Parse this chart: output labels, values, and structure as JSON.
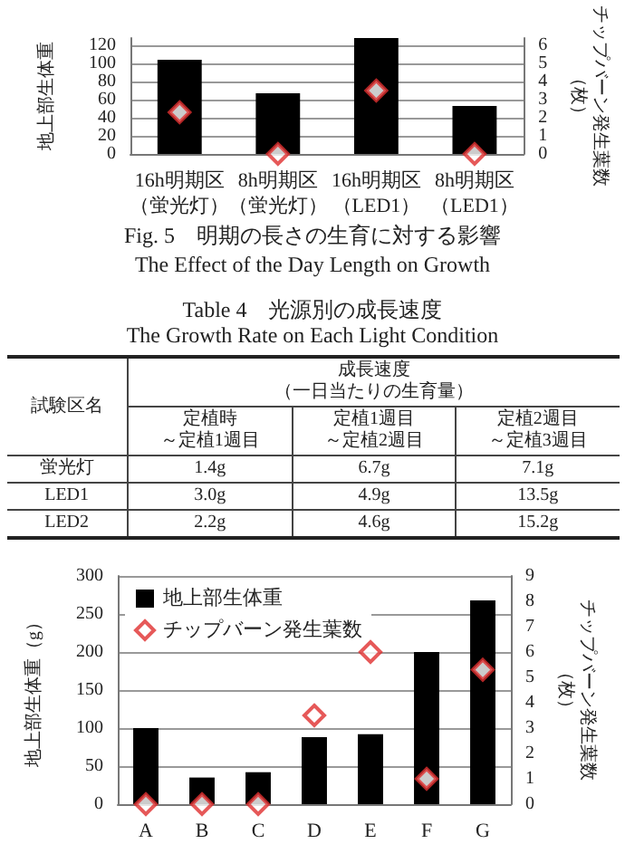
{
  "chart_data": [
    {
      "type": "bar",
      "ylabel": "地上部生体重",
      "y2label": "チップバーン発生葉数（枚）",
      "categories": [
        "16h明期区（蛍光灯）",
        "8h明期区（蛍光灯）",
        "16h明期区（LED1）",
        "8h明期区（LED1）"
      ],
      "series": [
        {
          "type": "bar",
          "color": "#000000",
          "values": [
            104,
            67,
            128,
            53
          ]
        },
        {
          "type": "scatter",
          "axis": "y2",
          "color": "#e0302f",
          "values": [
            2.3,
            0,
            3.5,
            0
          ]
        }
      ],
      "ylim": [
        0,
        128
      ],
      "yticks": [
        0,
        20,
        40,
        60,
        80,
        100,
        120
      ],
      "y2lim": [
        0,
        6.4
      ],
      "y2ticks": [
        0,
        1,
        2,
        3,
        4,
        5,
        6
      ],
      "grid": "y",
      "legend": false,
      "marker": "diamond",
      "annotations": [
        "Fig. 5　明期の長さの生育に対する影響",
        "The Effect of the Day Length on Growth"
      ]
    },
    {
      "type": "other",
      "title": "Table 4　光源別の成長速度",
      "subtitle": "The Growth Rate on Each Light Condition",
      "annotations": [
        "試験区名",
        "成長速度（一日当たりの生育量）",
        "定植時～定植1週目",
        "定植1週目～定植2週目",
        "定植2週目～定植3週目",
        "蛍光灯",
        "1.4g",
        "6.7g",
        "7.1g",
        "LED1",
        "3.0g",
        "4.9g",
        "13.5g",
        "LED2",
        "2.2g",
        "4.6g",
        "15.2g"
      ]
    },
    {
      "type": "bar",
      "ylabel": "地上部生体重（g）",
      "y2label": "チップバーン発生葉数（枚）",
      "categories": [
        "A",
        "B",
        "C",
        "D",
        "E",
        "F",
        "G"
      ],
      "series": [
        {
          "type": "bar",
          "name": "地上部生体重",
          "color": "#000000",
          "values": [
            100,
            35,
            42,
            88,
            92,
            200,
            268
          ]
        },
        {
          "type": "scatter",
          "name": "チップバーン発生葉数",
          "axis": "y2",
          "color": "#e0302f",
          "values": [
            0,
            0,
            0,
            3.5,
            6,
            1,
            5.3
          ]
        }
      ],
      "ylim": [
        0,
        300
      ],
      "yticks": [
        0,
        50,
        100,
        150,
        200,
        250,
        300
      ],
      "y2lim": [
        0,
        9
      ],
      "y2ticks": [
        0,
        1,
        2,
        3,
        4,
        5,
        6,
        7,
        8,
        9
      ],
      "grid": "y",
      "legend": "top left",
      "marker": "diamond"
    }
  ]
}
